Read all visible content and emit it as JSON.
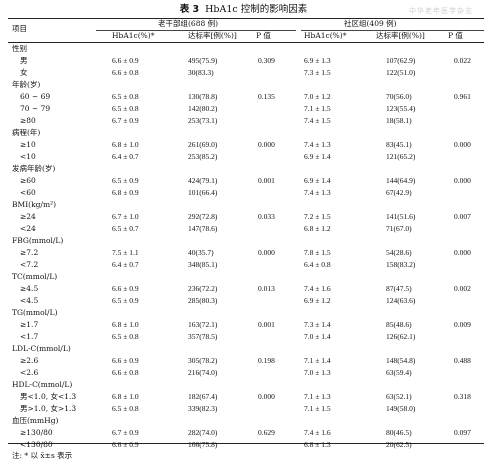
{
  "table": {
    "number": "表 3",
    "title": "HbA1c 控制的影响因素",
    "col_item": "项目",
    "group1": "老干部组(688 例)",
    "group2": "社区组(409 例)",
    "col_hba1c": "HbA1c(%)*",
    "col_rate": "达标率[例(%)]",
    "col_p": "P 值",
    "note": "注: * 以 x̄±s 表示",
    "rows": [
      {
        "label": "性别",
        "sub": false
      },
      {
        "label": "男",
        "sub": true,
        "v": [
          "6.6 ± 0.9",
          "495(75.9)",
          "0.309",
          "6.9 ± 1.3",
          "107(62.9)",
          "0.022"
        ]
      },
      {
        "label": "女",
        "sub": true,
        "v": [
          "6.6 ± 0.8",
          "30(83.3)",
          "",
          "7.3 ± 1.5",
          "122(51.0)",
          ""
        ]
      },
      {
        "label": "年龄(岁)",
        "sub": false
      },
      {
        "label": "60 ~ 69",
        "sub": true,
        "v": [
          "6.5 ± 0.8",
          "130(78.8)",
          "0.135",
          "7.0 ± 1.2",
          "70(56.0)",
          "0.961"
        ]
      },
      {
        "label": "70 ~ 79",
        "sub": true,
        "v": [
          "6.5 ± 0.8",
          "142(80.2)",
          "",
          "7.1 ± 1.5",
          "123(55.4)",
          ""
        ]
      },
      {
        "label": "≥80",
        "sub": true,
        "v": [
          "6.7 ± 0.9",
          "253(73.1)",
          "",
          "7.4 ± 1.5",
          "18(58.1)",
          ""
        ]
      },
      {
        "label": "病程(年)",
        "sub": false
      },
      {
        "label": "≥10",
        "sub": true,
        "v": [
          "6.8 ± 1.0",
          "261(69.0)",
          "0.000",
          "7.4 ± 1.3",
          "83(45.1)",
          "0.000"
        ]
      },
      {
        "label": "<10",
        "sub": true,
        "v": [
          "6.4 ± 0.7",
          "253(85.2)",
          "",
          "6.9 ± 1.4",
          "121(65.2)",
          ""
        ]
      },
      {
        "label": "发病年龄(岁)",
        "sub": false
      },
      {
        "label": "≥60",
        "sub": true,
        "v": [
          "6.5 ± 0.9",
          "424(79.1)",
          "0.001",
          "6.9 ± 1.4",
          "144(64.9)",
          "0.000"
        ]
      },
      {
        "label": "<60",
        "sub": true,
        "v": [
          "6.8 ± 0.9",
          "101(66.4)",
          "",
          "7.4 ± 1.3",
          "67(42.9)",
          ""
        ]
      },
      {
        "label": "BMI(kg/m²)",
        "sub": false
      },
      {
        "label": "≥24",
        "sub": true,
        "v": [
          "6.7 ± 1.0",
          "292(72.8)",
          "0.033",
          "7.2 ± 1.5",
          "141(51.6)",
          "0.007"
        ]
      },
      {
        "label": "<24",
        "sub": true,
        "v": [
          "6.5 ± 0.7",
          "147(78.6)",
          "",
          "6.8 ± 1.2",
          "71(67.0)",
          ""
        ]
      },
      {
        "label": "FBG(mmol/L)",
        "sub": false
      },
      {
        "label": "≥7.2",
        "sub": true,
        "v": [
          "7.5 ± 1.1",
          "40(35.7)",
          "0.000",
          "7.8 ± 1.5",
          "54(28.6)",
          "0.000"
        ]
      },
      {
        "label": "<7.2",
        "sub": true,
        "v": [
          "6.4 ± 0.7",
          "348(85.1)",
          "",
          "6.4 ± 0.8",
          "158(83.2)",
          ""
        ]
      },
      {
        "label": "TC(mmol/L)",
        "sub": false
      },
      {
        "label": "≥4.5",
        "sub": true,
        "v": [
          "6.6 ± 0.9",
          "236(72.2)",
          "0.013",
          "7.4 ± 1.6",
          "87(47.5)",
          "0.002"
        ]
      },
      {
        "label": "<4.5",
        "sub": true,
        "v": [
          "6.5 ± 0.9",
          "285(80.3)",
          "",
          "6.9 ± 1.2",
          "124(63.6)",
          ""
        ]
      },
      {
        "label": "TG(mmol/L)",
        "sub": false
      },
      {
        "label": "≥1.7",
        "sub": true,
        "v": [
          "6.8 ± 1.0",
          "163(72.1)",
          "0.001",
          "7.3 ± 1.4",
          "85(48.6)",
          "0.009"
        ]
      },
      {
        "label": "<1.7",
        "sub": true,
        "v": [
          "6.5 ± 0.8",
          "357(78.5)",
          "",
          "7.0 ± 1.4",
          "126(62.1)",
          ""
        ]
      },
      {
        "label": "LDL-C(mmol/L)",
        "sub": false
      },
      {
        "label": "≥2.6",
        "sub": true,
        "v": [
          "6.6 ± 0.9",
          "305(78.2)",
          "0.198",
          "7.1 ± 1.4",
          "148(54.8)",
          "0.488"
        ]
      },
      {
        "label": "<2.6",
        "sub": true,
        "v": [
          "6.6 ± 0.8",
          "216(74.0)",
          "",
          "7.0 ± 1.3",
          "63(59.4)",
          ""
        ]
      },
      {
        "label": "HDL-C(mmol/L)",
        "sub": false
      },
      {
        "label": "男<1.0, 女<1.3",
        "sub": true,
        "v": [
          "6.8 ± 1.0",
          "182(67.4)",
          "0.000",
          "7.1 ± 1.3",
          "63(52.1)",
          "0.318"
        ]
      },
      {
        "label": "男>1.0, 女>1.3",
        "sub": true,
        "v": [
          "6.5 ± 0.8",
          "339(82.3)",
          "",
          "7.1 ± 1.5",
          "149(58.0)",
          ""
        ]
      },
      {
        "label": "血压(mmHg)",
        "sub": false
      },
      {
        "label": "≥130/80",
        "sub": true,
        "v": [
          "6.7 ± 0.9",
          "282(74.0)",
          "0.629",
          "7.4 ± 1.6",
          "80(46.5)",
          "0.097"
        ]
      },
      {
        "label": "<130/80",
        "sub": true,
        "v": [
          "6.6 ± 0.9",
          "166(75.8)",
          "",
          "6.8 ± 1.3",
          "20(62.5)",
          ""
        ]
      }
    ]
  }
}
